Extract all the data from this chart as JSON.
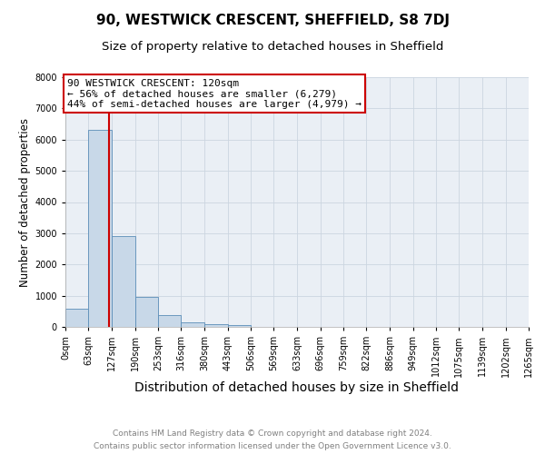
{
  "title": "90, WESTWICK CRESCENT, SHEFFIELD, S8 7DJ",
  "subtitle": "Size of property relative to detached houses in Sheffield",
  "xlabel": "Distribution of detached houses by size in Sheffield",
  "ylabel": "Number of detached properties",
  "bin_edges": [
    0,
    63,
    127,
    190,
    253,
    316,
    380,
    443,
    506,
    569,
    633,
    696,
    759,
    822,
    886,
    949,
    1012,
    1075,
    1139,
    1202,
    1265
  ],
  "bar_heights": [
    570,
    6300,
    2900,
    970,
    370,
    160,
    100,
    60,
    0,
    0,
    0,
    0,
    0,
    0,
    0,
    0,
    0,
    0,
    0,
    0
  ],
  "bar_color": "#c8d8e8",
  "bar_edgecolor": "#5b8db8",
  "property_size": 120,
  "property_line_color": "#cc0000",
  "annotation_text": "90 WESTWICK CRESCENT: 120sqm\n← 56% of detached houses are smaller (6,279)\n44% of semi-detached houses are larger (4,979) →",
  "annotation_box_color": "#cc0000",
  "ylim": [
    0,
    8000
  ],
  "yticks": [
    0,
    1000,
    2000,
    3000,
    4000,
    5000,
    6000,
    7000,
    8000
  ],
  "xtick_labels": [
    "0sqm",
    "63sqm",
    "127sqm",
    "190sqm",
    "253sqm",
    "316sqm",
    "380sqm",
    "443sqm",
    "506sqm",
    "569sqm",
    "633sqm",
    "696sqm",
    "759sqm",
    "822sqm",
    "886sqm",
    "949sqm",
    "1012sqm",
    "1075sqm",
    "1139sqm",
    "1202sqm",
    "1265sqm"
  ],
  "grid_color": "#ccd5e0",
  "background_color": "#eaeff5",
  "footer_line1": "Contains HM Land Registry data © Crown copyright and database right 2024.",
  "footer_line2": "Contains public sector information licensed under the Open Government Licence v3.0.",
  "title_fontsize": 11,
  "subtitle_fontsize": 9.5,
  "xlabel_fontsize": 10,
  "ylabel_fontsize": 8.5,
  "tick_fontsize": 7,
  "annotation_fontsize": 8,
  "footer_fontsize": 6.5
}
